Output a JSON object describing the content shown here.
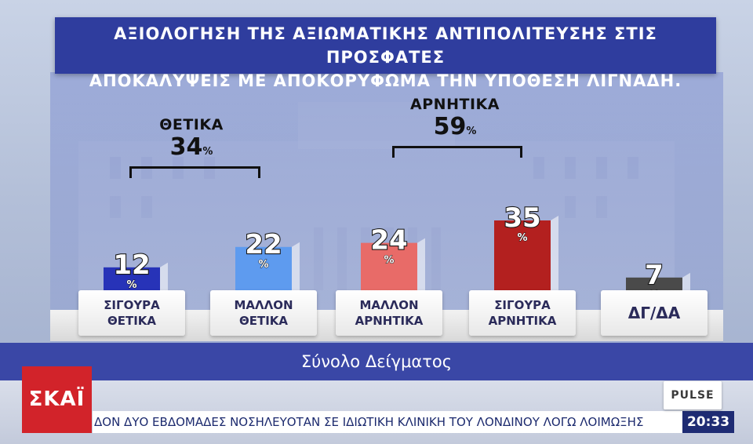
{
  "title_lines": [
    "ΑΞΙΟΛΟΓΗΣΗ ΤΗΣ ΑΞΙΩΜΑΤΙΚΗΣ ΑΝΤΙΠΟΛΙΤΕΥΣΗΣ ΣΤΙΣ ΠΡΟΣΦΑΤΕΣ",
    "ΑΠΟΚΑΛΥΨΕΙΣ ΜΕ ΑΠΟΚΟΡΥΦΩΜΑ ΤΗΝ ΥΠΟΘΕΣΗ ΛΙΓΝΑΔΗ."
  ],
  "chart_data": {
    "type": "bar",
    "categories": [
      "ΣΙΓΟΥΡΑ\nΘΕΤΙΚΑ",
      "ΜΑΛΛΟΝ\nΘΕΤΙΚΑ",
      "ΜΑΛΛΟΝ\nΑΡΝΗΤΙΚΑ",
      "ΣΙΓΟΥΡΑ\nΑΡΝΗΤΙΚΑ",
      "ΔΓ/ΔΑ"
    ],
    "values": [
      12,
      22,
      24,
      35,
      7
    ],
    "value_labels": [
      "12",
      "22",
      "24",
      "35",
      "7"
    ],
    "unit": "%",
    "colors": [
      "#2733b8",
      "#5e9bef",
      "#e86b68",
      "#b3201f",
      "#4a4a4a"
    ],
    "groups": [
      {
        "name": "ΘΕΤΙΚΑ",
        "total": "34",
        "unit": "%",
        "members": [
          0,
          1
        ]
      },
      {
        "name": "ΑΡΝΗΤΙΚΑ",
        "total": "59",
        "unit": "%",
        "members": [
          2,
          3
        ]
      }
    ],
    "ylim": [
      0,
      40
    ]
  },
  "sample_label": "Σύνολο Δείγματος",
  "ticker": {
    "text": "ΔΟΝ ΔΥΟ ΕΒΔΟΜΑΔΕΣ ΝΟΣΗΛΕΥΟΤΑΝ ΣΕ ΙΔΙΩΤΙΚΗ ΚΛΙΝΙΚΗ ΤΟΥ ΛΟΝΔΙΝΟΥ ΛΟΓΩ ΛΟΙΜΩΞΗΣ",
    "time": "20:33"
  },
  "channel_logo": "ΣΚΑΪ",
  "pollster_logo": "PULSE"
}
